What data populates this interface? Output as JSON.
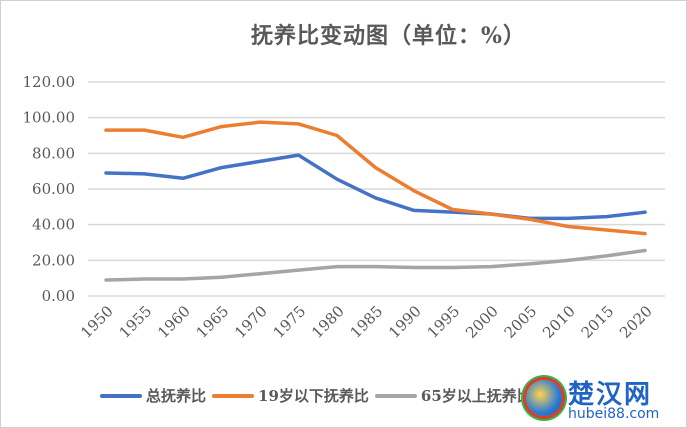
{
  "chart_data": {
    "type": "line",
    "title": "抚养比变动图（单位：%）",
    "xlabel": "",
    "ylabel": "",
    "ylim": [
      0,
      120
    ],
    "yticks": [
      "0.00",
      "20.00",
      "40.00",
      "60.00",
      "80.00",
      "100.00",
      "120.00"
    ],
    "x": [
      "1950",
      "1955",
      "1960",
      "1965",
      "1970",
      "1975",
      "1980",
      "1985",
      "1990",
      "1995",
      "2000",
      "2005",
      "2010",
      "2015",
      "2020"
    ],
    "grid": true,
    "legend_position": "bottom",
    "series": [
      {
        "name": "总抚养比",
        "color": "#4472c4",
        "values": [
          69,
          68.5,
          66,
          72,
          75.5,
          79,
          65.5,
          55,
          48,
          47,
          46,
          43.5,
          43.5,
          44.5,
          47
        ]
      },
      {
        "name": "19岁以下抚养比",
        "color": "#ed7d31",
        "values": [
          93,
          93,
          89,
          95,
          97.5,
          96.5,
          90,
          72,
          59,
          48.5,
          46,
          43,
          39,
          37,
          35
        ]
      },
      {
        "name": "65岁以上抚养比",
        "color": "#a5a5a5",
        "values": [
          9,
          9.5,
          9.5,
          10.5,
          12.5,
          14.5,
          16.5,
          16.5,
          16,
          16,
          16.5,
          18,
          20,
          22.5,
          25.5
        ]
      }
    ]
  },
  "watermark": {
    "name": "楚汉网",
    "url": "hubei88.com"
  }
}
